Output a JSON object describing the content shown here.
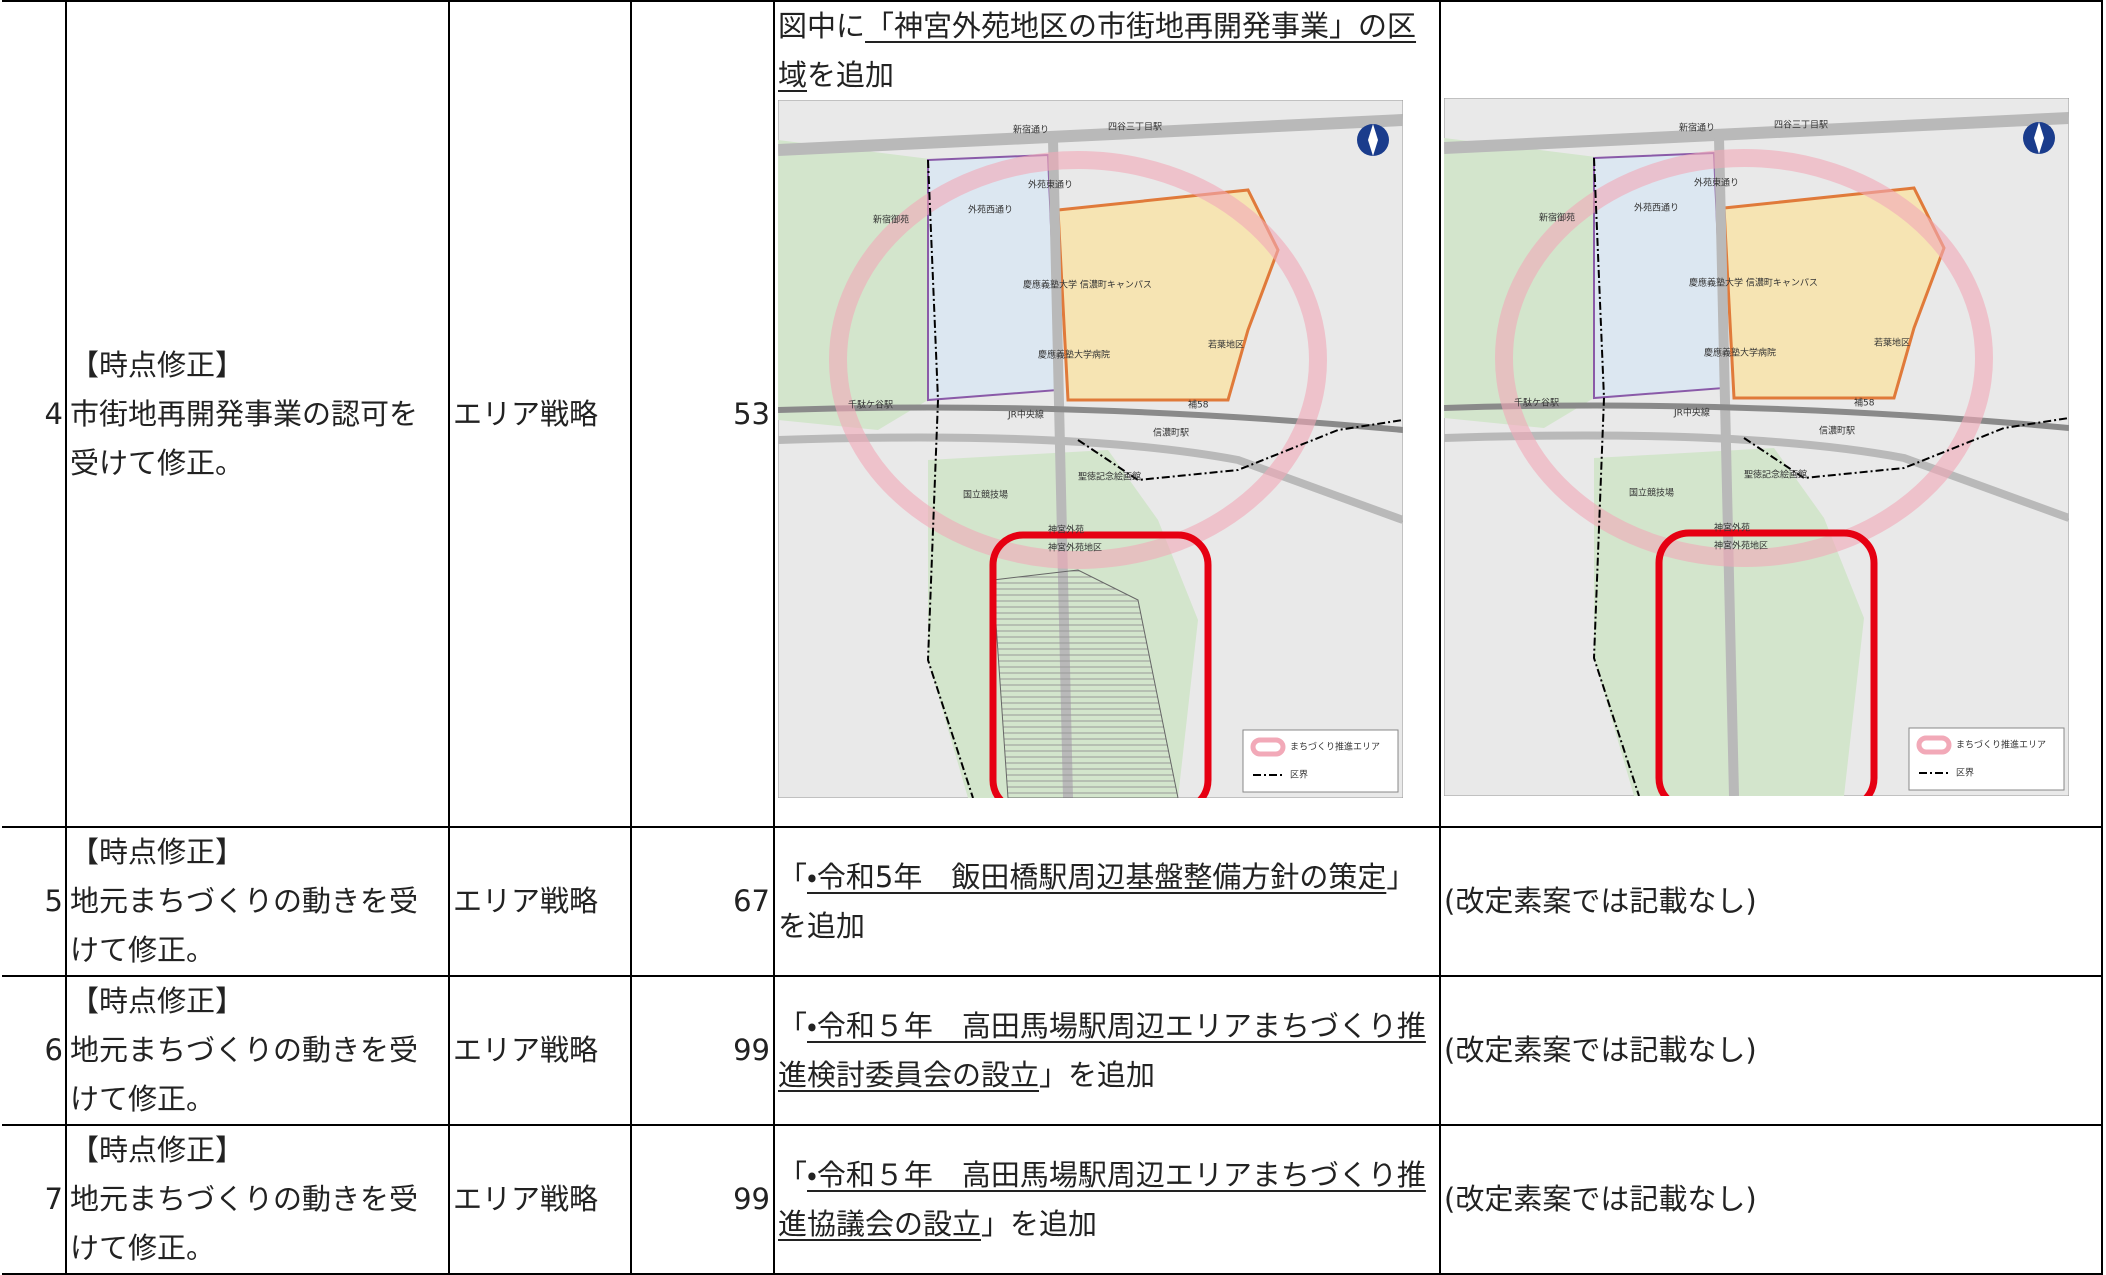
{
  "table": {
    "rows": [
      {
        "number": "4",
        "tag": "【時点修正】",
        "reason": "市街地再開発事業の認可を受けて修正。",
        "section": "エリア戦略",
        "page": "53",
        "change": {
          "before": "図中に",
          "underlined": "「神宮外苑地区の市街地再開発事業」の区域",
          "after": "を追加"
        }
      },
      {
        "number": "5",
        "tag": "【時点修正】",
        "reason": "地元まちづくりの動きを受けて修正。",
        "section": "エリア戦略",
        "page": "67",
        "change": {
          "before": "「",
          "underlined": "・令和5年　飯田橋駅周辺基盤整備方針の策定",
          "after": "」を追加"
        },
        "original": "(改定素案では記載なし)"
      },
      {
        "number": "6",
        "tag": "【時点修正】",
        "reason": "地元まちづくりの動きを受けて修正。",
        "section": "エリア戦略",
        "page": "99",
        "change": {
          "before": "「",
          "underlined": "・令和５年　高田馬場駅周辺エリアまちづくり推進検討委員会の設立",
          "after": "」を追加"
        },
        "original": "(改定素案では記載なし)"
      },
      {
        "number": "7",
        "tag": "【時点修正】",
        "reason": "地元まちづくりの動きを受けて修正。",
        "section": "エリア戦略",
        "page": "99",
        "change": {
          "before": "「",
          "underlined": "・令和５年　高田馬場駅周辺エリアまちづくり推進協議会の設立",
          "after": "」を追加"
        },
        "original": "(改定素案では記載なし)"
      }
    ]
  },
  "map": {
    "labels": [
      "四谷三丁目駅",
      "新宿通り",
      "外苑西通り",
      "外苑東通り",
      "新宿御苑",
      "慶應義塾大学 信濃町キャンパス",
      "慶應義塾大学病院",
      "千駄ケ谷駅",
      "JR中央線",
      "信濃町駅",
      "国立競技場",
      "聖徳記念絵画館",
      "神宮外苑",
      "神宮外苑地区",
      "若葉地区",
      "補58"
    ],
    "legend": [
      "まちづくり推進エリア",
      "区界"
    ]
  }
}
